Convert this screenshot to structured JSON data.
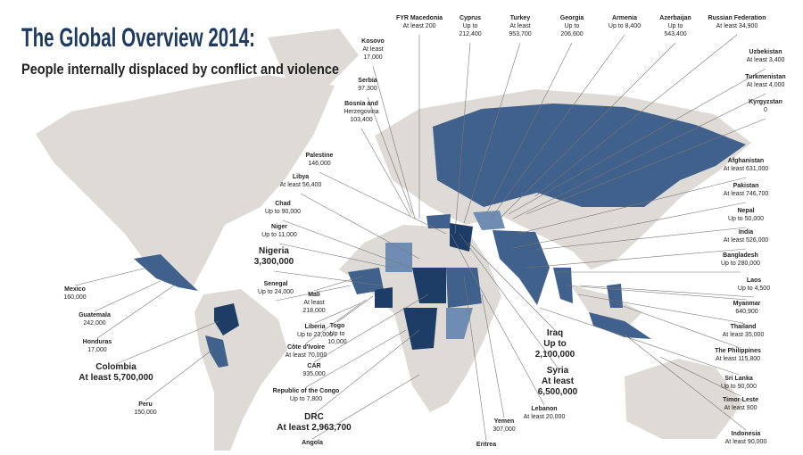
{
  "header": {
    "title": "The Global Overview 2014:",
    "subtitle": "People internally displaced by conflict and violence"
  },
  "labels": [
    {
      "lines": [
        "FYR Macedonia",
        "At least 200"
      ]
    },
    {
      "lines": [
        "Cyprus",
        "Up to",
        "212,400"
      ]
    },
    {
      "lines": [
        "Turkey",
        "At least",
        "953,700"
      ]
    },
    {
      "lines": [
        "Georgia",
        "Up to",
        "206,600"
      ]
    },
    {
      "lines": [
        "Armenia",
        "Up to 8,400"
      ]
    },
    {
      "lines": [
        "Azerbaijan",
        "Up to",
        "543,400"
      ]
    },
    {
      "lines": [
        "Russian Federation",
        "At least 34,900"
      ]
    },
    {
      "lines": [
        "Kosovo",
        "At least",
        "17,000"
      ]
    },
    {
      "lines": [
        "Serbia",
        "97,300"
      ]
    },
    {
      "lines": [
        "Bosnia and",
        "Herzegovina",
        "103,400"
      ]
    },
    {
      "lines": [
        "Palestine",
        "146,000"
      ]
    },
    {
      "lines": [
        "Libya",
        "At least 56,400"
      ]
    },
    {
      "lines": [
        "Chad",
        "Up to 90,000"
      ]
    },
    {
      "lines": [
        "Niger",
        "Up to 11,000"
      ]
    },
    {
      "lines": [
        "Nigeria",
        "3,300,000"
      ],
      "emphasis": true
    },
    {
      "lines": [
        "Senegal",
        "Up to 24,000"
      ]
    },
    {
      "lines": [
        "Mali",
        "At least",
        "218,000"
      ]
    },
    {
      "lines": [
        "Liberia",
        "Up to 23,000"
      ]
    },
    {
      "lines": [
        "Togo",
        "Up to",
        "10,000"
      ]
    },
    {
      "lines": [
        "Côte d'Ivoire",
        "At least 70,000"
      ]
    },
    {
      "lines": [
        "CAR",
        "935,000"
      ]
    },
    {
      "lines": [
        "Republic of the Congo",
        "Up to 7,800"
      ]
    },
    {
      "lines": [
        "DRC",
        "At least 2,963,700"
      ],
      "emphasis": true
    },
    {
      "lines": [
        "Angola"
      ]
    },
    {
      "lines": [
        "Mexico",
        "160,000"
      ]
    },
    {
      "lines": [
        "Guatemala",
        "242,000"
      ]
    },
    {
      "lines": [
        "Honduras",
        "17,000"
      ]
    },
    {
      "lines": [
        "Colombia",
        "At least 5,700,000"
      ],
      "emphasis": true
    },
    {
      "lines": [
        "Peru",
        "150,000"
      ]
    },
    {
      "lines": [
        "Uzbekistan",
        "At least 3,400"
      ]
    },
    {
      "lines": [
        "Turkmenistan",
        "At least 4,000"
      ]
    },
    {
      "lines": [
        "Kyrgyzstan",
        "0"
      ]
    },
    {
      "lines": [
        "Afghanistan",
        "At least 631,000"
      ]
    },
    {
      "lines": [
        "Pakistan",
        "At least 746,700"
      ]
    },
    {
      "lines": [
        "Nepal",
        "Up to 50,000"
      ]
    },
    {
      "lines": [
        "India",
        "At least 526,000"
      ]
    },
    {
      "lines": [
        "Bangladesh",
        "Up to 280,000"
      ]
    },
    {
      "lines": [
        "Laos",
        "Up to 4,500"
      ]
    },
    {
      "lines": [
        "Myanmar",
        "640,900"
      ]
    },
    {
      "lines": [
        "Thailand",
        "At least 35,000"
      ]
    },
    {
      "lines": [
        "The Philippines",
        "At least 115,800"
      ]
    },
    {
      "lines": [
        "Sri Lanka",
        "Up to 90,000"
      ]
    },
    {
      "lines": [
        "Timor-Leste",
        "At least 900"
      ]
    },
    {
      "lines": [
        "Indonesia",
        "At least 90,000"
      ]
    },
    {
      "lines": [
        "Iraq",
        "Up to",
        "2,100,000"
      ],
      "emphasis": true
    },
    {
      "lines": [
        "Syria",
        "At least",
        "6,500,000"
      ],
      "emphasis": true
    },
    {
      "lines": [
        "Lebanon",
        "At least 20,000"
      ]
    },
    {
      "lines": [
        "Yemen",
        "307,000"
      ]
    },
    {
      "lines": [
        "Eritrea"
      ]
    }
  ]
}
